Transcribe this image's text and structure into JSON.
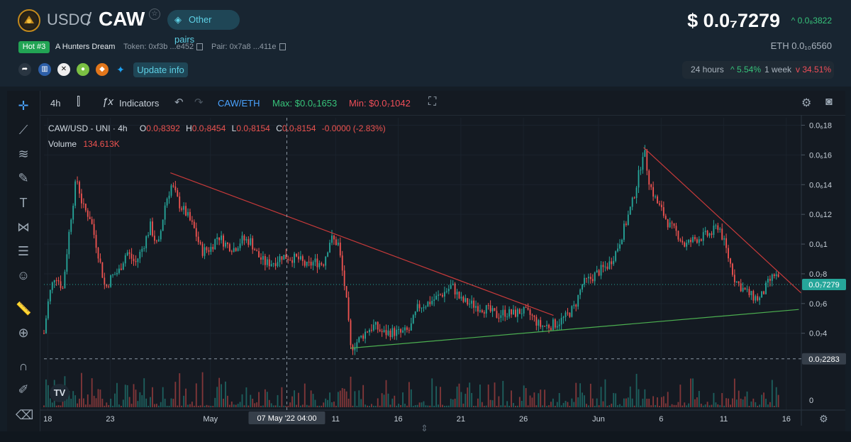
{
  "header": {
    "base": "USDC",
    "sep": "/",
    "token": "CAW",
    "other_pairs": "Other pairs",
    "price": "$ 0.0₇7279",
    "price_change": "^ 0.0₈3822",
    "hot": "Hot #3",
    "name": "A Hunters Dream",
    "token_addr": "Token: 0xf3b ...e452",
    "pair_addr": "Pair: 0x7a8 ...411e",
    "eth_price": "ETH  0.0₁₀6560",
    "update_info": "Update info",
    "range_24h_label": "24 hours",
    "range_24h": "^ 5.54%",
    "range_1w_label": "1 week",
    "range_1w": "v 34.51%"
  },
  "toolbar": {
    "interval": "4h",
    "indicators": "Indicators",
    "pair": "CAW/ETH",
    "max": "Max: $0.0₆1653",
    "min": "Min: $0.0₇1042"
  },
  "legend": {
    "symbol": "CAW/USD - UNI · 4h",
    "o_lbl": "O",
    "o": "0.0₇8392",
    "h_lbl": "H",
    "h": "0.0₇8454",
    "l_lbl": "L",
    "l": "0.0₇8154",
    "c_lbl": "C",
    "c": "0.0₇8154",
    "chg": "-0.0000 (-2.83%)",
    "volume_lbl": "Volume",
    "volume": "134.613K"
  },
  "chart_data": {
    "type": "candlestick",
    "title": "CAW/USD - UNI · 4h",
    "y_ticks": [
      "0.0₆18",
      "0.0₆16",
      "0.0₆14",
      "0.0₆12",
      "0.0₆1",
      "0.0₇8",
      "0.0₇6",
      "0.0₇4"
    ],
    "y_tick_values": [
      180,
      160,
      140,
      120,
      100,
      80,
      60,
      40
    ],
    "ylim": [
      16,
      185
    ],
    "x_ticks": [
      "18",
      "23",
      "May",
      "11",
      "16",
      "21",
      "26",
      "Jun",
      "6",
      "11",
      "16"
    ],
    "x_tick_day": [
      18,
      23,
      31,
      41,
      46,
      51,
      56,
      62,
      67,
      72,
      77
    ],
    "x_range_day": [
      17.7,
      78.2
    ],
    "crosshair_label": "07 May '22   04:00",
    "crosshair_day": 37.1,
    "crosshair_value_label": "0.0₇2283",
    "crosshair_value": 22.8,
    "last_price_label": "0.0₇7279",
    "last_price": 72.8,
    "volume_zero_label": "0",
    "series_close": [
      [
        17.7,
        40
      ],
      [
        18.1,
        65
      ],
      [
        18.6,
        80
      ],
      [
        19.2,
        70
      ],
      [
        19.8,
        115
      ],
      [
        20.3,
        145
      ],
      [
        20.8,
        125
      ],
      [
        21.4,
        118
      ],
      [
        22.0,
        95
      ],
      [
        22.6,
        70
      ],
      [
        23.1,
        78
      ],
      [
        23.7,
        82
      ],
      [
        24.3,
        95
      ],
      [
        25.0,
        87
      ],
      [
        25.6,
        98
      ],
      [
        26.2,
        112
      ],
      [
        26.8,
        97
      ],
      [
        27.4,
        128
      ],
      [
        27.9,
        140
      ],
      [
        28.5,
        127
      ],
      [
        29.1,
        120
      ],
      [
        29.7,
        110
      ],
      [
        30.3,
        95
      ],
      [
        31.0,
        97
      ],
      [
        31.6,
        106
      ],
      [
        32.2,
        100
      ],
      [
        32.9,
        97
      ],
      [
        33.5,
        103
      ],
      [
        34.2,
        102
      ],
      [
        34.8,
        92
      ],
      [
        35.4,
        87
      ],
      [
        36.1,
        88
      ],
      [
        36.7,
        92
      ],
      [
        37.3,
        91
      ],
      [
        38.0,
        90
      ],
      [
        38.7,
        85
      ],
      [
        39.3,
        88
      ],
      [
        40.0,
        87
      ],
      [
        40.6,
        104
      ],
      [
        41.2,
        100
      ],
      [
        41.8,
        67
      ],
      [
        42.2,
        30
      ],
      [
        42.8,
        35
      ],
      [
        43.5,
        42
      ],
      [
        44.1,
        45
      ],
      [
        44.8,
        40
      ],
      [
        45.5,
        41
      ],
      [
        46.2,
        40
      ],
      [
        46.9,
        42
      ],
      [
        47.6,
        58
      ],
      [
        48.3,
        60
      ],
      [
        48.9,
        63
      ],
      [
        49.6,
        67
      ],
      [
        50.3,
        72
      ],
      [
        51.0,
        62
      ],
      [
        51.7,
        60
      ],
      [
        52.4,
        58
      ],
      [
        53.1,
        56
      ],
      [
        53.8,
        52
      ],
      [
        54.5,
        54
      ],
      [
        55.2,
        53
      ],
      [
        55.9,
        55
      ],
      [
        56.6,
        52
      ],
      [
        57.3,
        45
      ],
      [
        58.0,
        45
      ],
      [
        58.7,
        47
      ],
      [
        59.4,
        51
      ],
      [
        60.1,
        58
      ],
      [
        60.7,
        73
      ],
      [
        61.4,
        77
      ],
      [
        62.1,
        82
      ],
      [
        62.8,
        86
      ],
      [
        63.4,
        95
      ],
      [
        64.1,
        112
      ],
      [
        64.7,
        128
      ],
      [
        65.3,
        150
      ],
      [
        65.6,
        165
      ],
      [
        66.1,
        140
      ],
      [
        66.6,
        129
      ],
      [
        67.2,
        120
      ],
      [
        67.7,
        112
      ],
      [
        68.3,
        107
      ],
      [
        68.9,
        99
      ],
      [
        69.6,
        103
      ],
      [
        70.3,
        105
      ],
      [
        71.0,
        107
      ],
      [
        71.6,
        113
      ],
      [
        72.2,
        96
      ],
      [
        72.9,
        76
      ],
      [
        73.5,
        70
      ],
      [
        74.2,
        65
      ],
      [
        74.9,
        63
      ],
      [
        75.5,
        73
      ],
      [
        76.1,
        80
      ],
      [
        76.5,
        73
      ]
    ],
    "lines": [
      {
        "kind": "trendline",
        "color": "#c83a3a",
        "points": [
          [
            27.8,
            148
          ],
          [
            58.4,
            52
          ]
        ]
      },
      {
        "kind": "trendline",
        "color": "#4caf50",
        "points": [
          [
            42.2,
            30
          ],
          [
            78.0,
            56
          ]
        ]
      },
      {
        "kind": "trendline",
        "color": "#c83a3a",
        "points": [
          [
            65.6,
            165
          ],
          [
            78.2,
            67
          ]
        ]
      }
    ]
  },
  "left_tools": [
    "crosshair-icon",
    "trendline-icon",
    "fib-icon",
    "brush-icon",
    "text-icon",
    "pattern-icon",
    "measure-icon",
    "smiley-icon",
    "ruler-icon",
    "zoom-icon",
    "magnet-icon",
    "lock-pencil-icon",
    "trash-icon"
  ],
  "colors": {
    "up": "#26a69a",
    "down": "#ef5350",
    "accent": "#5ed1e6",
    "green": "#37c37a",
    "red": "#f04e58"
  }
}
